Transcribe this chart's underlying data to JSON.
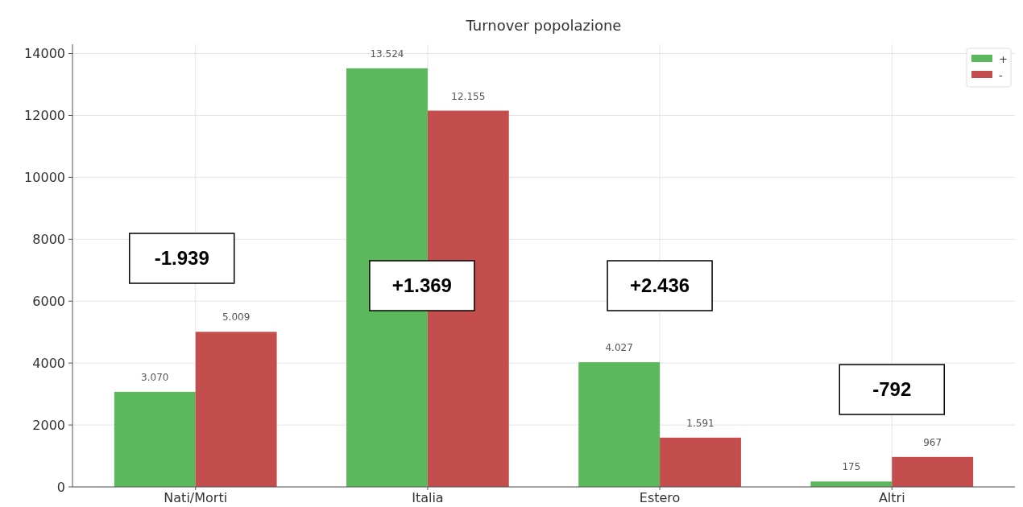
{
  "chart_data": {
    "type": "bar",
    "title": "Turnover popolazione",
    "categories": [
      "Nati/Morti",
      "Italia",
      "Estero",
      "Altri"
    ],
    "series": [
      {
        "name": "+",
        "color": "#5cb85c",
        "values": [
          3070,
          13524,
          4027,
          175
        ],
        "value_labels": [
          "3.070",
          "13.524",
          "4.027",
          "175"
        ]
      },
      {
        "name": "-",
        "color": "#c44e4e",
        "values": [
          5009,
          12155,
          1591,
          967
        ],
        "value_labels": [
          "5.009",
          "12.155",
          "1.591",
          "967"
        ]
      }
    ],
    "ylim": [
      0,
      14300
    ],
    "yticks": [
      0,
      2000,
      4000,
      6000,
      8000,
      10000,
      12000,
      14000
    ],
    "grid": true,
    "legend": "top right",
    "annotations": [
      "-1.939",
      "+1.369",
      "+2.436",
      "-792"
    ]
  }
}
